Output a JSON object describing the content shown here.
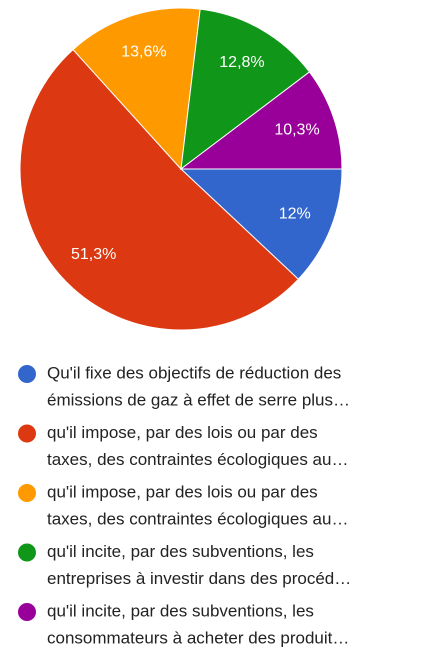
{
  "chart_data": {
    "type": "pie",
    "categories": [
      [
        "Qu'il fixe des objectifs de réduction des",
        "émissions de gaz à effet de serre plus…"
      ],
      [
        "qu'il impose, par des lois ou par des",
        "taxes, des contraintes écologiques au…"
      ],
      [
        "qu'il impose, par des lois ou par des",
        "taxes, des contraintes écologiques au…"
      ],
      [
        "qu'il incite, par des subventions, les",
        "entreprises à investir dans des procéd…"
      ],
      [
        "qu'il incite, par des subventions, les",
        "consommateurs à acheter des produit…"
      ]
    ],
    "values": [
      12,
      51.3,
      13.6,
      12.8,
      10.3
    ],
    "value_labels": [
      "12%",
      "51,3%",
      "13,6%",
      "12,8%",
      "10,3%"
    ],
    "colors": [
      "#3366cc",
      "#dc3912",
      "#ff9900",
      "#109618",
      "#990099"
    ]
  }
}
